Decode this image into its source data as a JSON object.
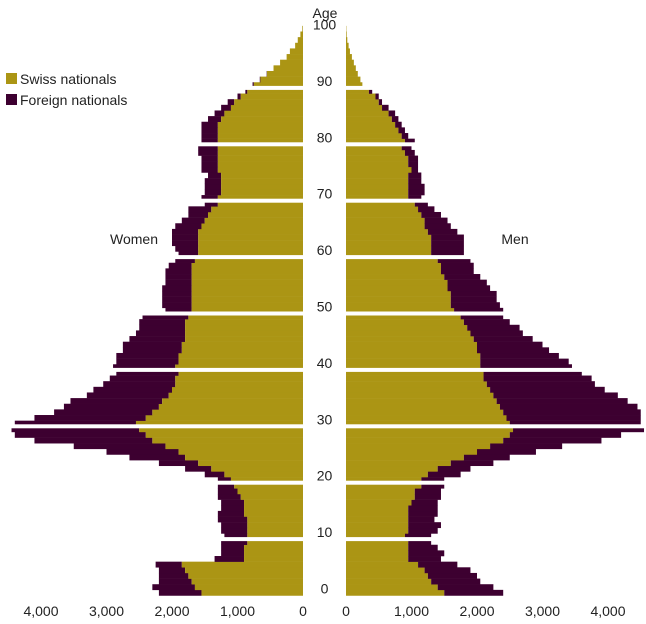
{
  "chart_data": {
    "type": "bar",
    "orientation": "horizontal-pyramid",
    "age_axis_label": "Age",
    "age_ticks": [
      "0",
      "10",
      "20",
      "30",
      "40",
      "50",
      "60",
      "70",
      "80",
      "90",
      "100"
    ],
    "value_ticks": [
      0,
      1000,
      2000,
      3000,
      4000
    ],
    "value_tick_labels": [
      "0",
      "1,000",
      "2,000",
      "3,000",
      "4,000"
    ],
    "xlim": [
      0,
      4600
    ],
    "side_labels": {
      "left": "Women",
      "right": "Men"
    },
    "legend": {
      "position": "top-left",
      "entries": [
        "Swiss nationals",
        "Foreign nationals"
      ]
    },
    "colors": {
      "swiss": "#ab9514",
      "foreign": "#3d0030",
      "separator": "#ffffff"
    },
    "ages": [
      0,
      1,
      2,
      3,
      4,
      5,
      6,
      7,
      8,
      9,
      10,
      11,
      12,
      13,
      14,
      15,
      16,
      17,
      18,
      19,
      20,
      21,
      22,
      23,
      24,
      25,
      26,
      27,
      28,
      29,
      30,
      31,
      32,
      33,
      34,
      35,
      36,
      37,
      38,
      39,
      40,
      41,
      42,
      43,
      44,
      45,
      46,
      47,
      48,
      49,
      50,
      51,
      52,
      53,
      54,
      55,
      56,
      57,
      58,
      59,
      60,
      61,
      62,
      63,
      64,
      65,
      66,
      67,
      68,
      69,
      70,
      71,
      72,
      73,
      74,
      75,
      76,
      77,
      78,
      79,
      80,
      81,
      82,
      83,
      84,
      85,
      86,
      87,
      88,
      89,
      90,
      91,
      92,
      93,
      94,
      95,
      96,
      97,
      98,
      99,
      100
    ],
    "series": [
      {
        "name": "Swiss nationals",
        "side": "women",
        "values": [
          1550,
          1650,
          1700,
          1750,
          1800,
          1850,
          900,
          900,
          900,
          850,
          850,
          850,
          850,
          850,
          900,
          900,
          900,
          950,
          1000,
          1050,
          1100,
          1200,
          1400,
          1600,
          1800,
          1900,
          2100,
          2300,
          2400,
          2500,
          2550,
          2400,
          2300,
          2200,
          2150,
          2050,
          2000,
          1950,
          1950,
          1900,
          1950,
          1900,
          1900,
          1850,
          1850,
          1800,
          1800,
          1800,
          1800,
          1750,
          1700,
          1700,
          1700,
          1700,
          1700,
          1700,
          1700,
          1700,
          1700,
          1650,
          1600,
          1600,
          1600,
          1600,
          1600,
          1550,
          1500,
          1450,
          1400,
          1300,
          1300,
          1250,
          1250,
          1250,
          1250,
          1300,
          1300,
          1300,
          1300,
          1300,
          1300,
          1300,
          1300,
          1300,
          1250,
          1200,
          1100,
          1050,
          950,
          850,
          750,
          650,
          550,
          450,
          350,
          250,
          200,
          120,
          80,
          40,
          10
        ]
      },
      {
        "name": "Foreign nationals",
        "side": "women",
        "values": [
          650,
          650,
          500,
          450,
          400,
          400,
          450,
          350,
          350,
          400,
          350,
          400,
          400,
          450,
          400,
          350,
          350,
          350,
          300,
          250,
          200,
          300,
          400,
          600,
          850,
          1100,
          1400,
          1800,
          2000,
          1950,
          1850,
          1700,
          1500,
          1450,
          1400,
          1250,
          1200,
          1100,
          1000,
          950,
          950,
          950,
          950,
          900,
          900,
          850,
          750,
          700,
          700,
          700,
          400,
          450,
          450,
          450,
          450,
          400,
          400,
          400,
          350,
          300,
          300,
          350,
          400,
          400,
          400,
          400,
          350,
          300,
          350,
          200,
          250,
          250,
          250,
          250,
          200,
          250,
          250,
          250,
          300,
          300,
          250,
          250,
          250,
          250,
          200,
          150,
          150,
          100,
          50,
          30,
          20,
          10,
          5,
          0,
          0,
          0,
          0,
          0,
          0,
          0,
          0
        ]
      },
      {
        "name": "Swiss nationals",
        "side": "men",
        "values": [
          1500,
          1400,
          1300,
          1250,
          1200,
          1100,
          950,
          950,
          950,
          950,
          900,
          950,
          950,
          950,
          950,
          950,
          1000,
          1050,
          1050,
          1150,
          1150,
          1250,
          1400,
          1600,
          1800,
          2000,
          2200,
          2400,
          2500,
          2550,
          2500,
          2450,
          2400,
          2350,
          2300,
          2250,
          2200,
          2150,
          2100,
          2100,
          2050,
          2050,
          2050,
          2000,
          2000,
          1950,
          1900,
          1850,
          1800,
          1750,
          1650,
          1600,
          1600,
          1600,
          1550,
          1550,
          1500,
          1450,
          1450,
          1400,
          1300,
          1300,
          1300,
          1300,
          1250,
          1200,
          1200,
          1150,
          1100,
          1050,
          950,
          950,
          950,
          950,
          950,
          1000,
          950,
          950,
          900,
          850,
          900,
          850,
          800,
          750,
          700,
          650,
          550,
          500,
          450,
          350,
          250,
          220,
          180,
          150,
          120,
          90,
          60,
          40,
          20,
          10,
          5
        ]
      },
      {
        "name": "Foreign nationals",
        "side": "men",
        "values": [
          900,
          850,
          750,
          750,
          700,
          600,
          500,
          550,
          450,
          350,
          400,
          450,
          500,
          400,
          450,
          450,
          400,
          400,
          400,
          350,
          350,
          500,
          500,
          650,
          700,
          900,
          1100,
          1500,
          1700,
          2000,
          2000,
          2050,
          2100,
          2100,
          2000,
          1900,
          1750,
          1650,
          1650,
          1500,
          1400,
          1350,
          1200,
          1100,
          1000,
          900,
          800,
          800,
          700,
          650,
          750,
          750,
          700,
          700,
          650,
          600,
          550,
          500,
          500,
          500,
          500,
          500,
          500,
          500,
          450,
          400,
          350,
          300,
          250,
          200,
          200,
          250,
          250,
          200,
          200,
          100,
          150,
          150,
          150,
          150,
          150,
          100,
          100,
          100,
          100,
          100,
          100,
          50,
          50,
          50,
          0,
          0,
          0,
          0,
          0,
          0,
          0,
          0,
          0,
          0,
          0
        ]
      }
    ]
  }
}
